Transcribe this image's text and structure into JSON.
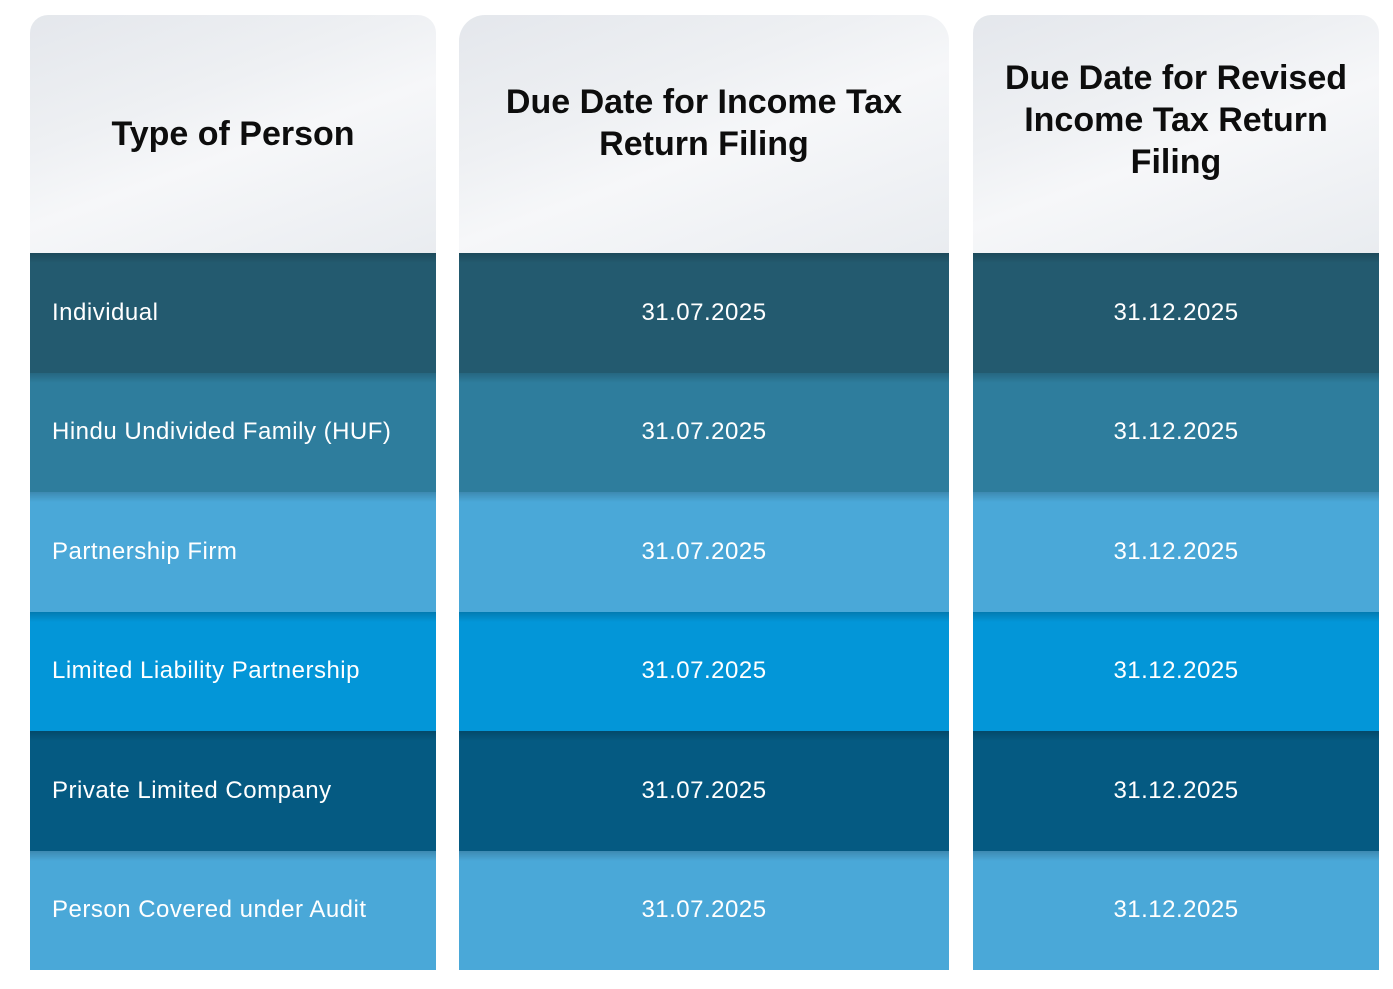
{
  "headers": [
    "Type of Person",
    "Due Date for Income Tax Return Filing",
    "Due Date for Revised Income Tax Return Filing"
  ],
  "rows": [
    {
      "type": "Individual",
      "itr_due": "31.07.2025",
      "revised_due": "31.12.2025"
    },
    {
      "type": "Hindu Undivided Family (HUF)",
      "itr_due": "31.07.2025",
      "revised_due": "31.12.2025"
    },
    {
      "type": "Partnership Firm",
      "itr_due": "31.07.2025",
      "revised_due": "31.12.2025"
    },
    {
      "type": "Limited Liability Partnership",
      "itr_due": "31.07.2025",
      "revised_due": "31.12.2025"
    },
    {
      "type": "Private Limited Company",
      "itr_due": "31.07.2025",
      "revised_due": "31.12.2025"
    },
    {
      "type": "Person Covered under Audit",
      "itr_due": "31.07.2025",
      "revised_due": "31.12.2025"
    }
  ],
  "colors": {
    "header_bg": "#eef0f3",
    "row_colors": [
      "#235a6f",
      "#2e7d9d",
      "#4aa8d8",
      "#0396d8",
      "#055a82",
      "#4aa8d8"
    ],
    "row_text": "#ffffff"
  }
}
